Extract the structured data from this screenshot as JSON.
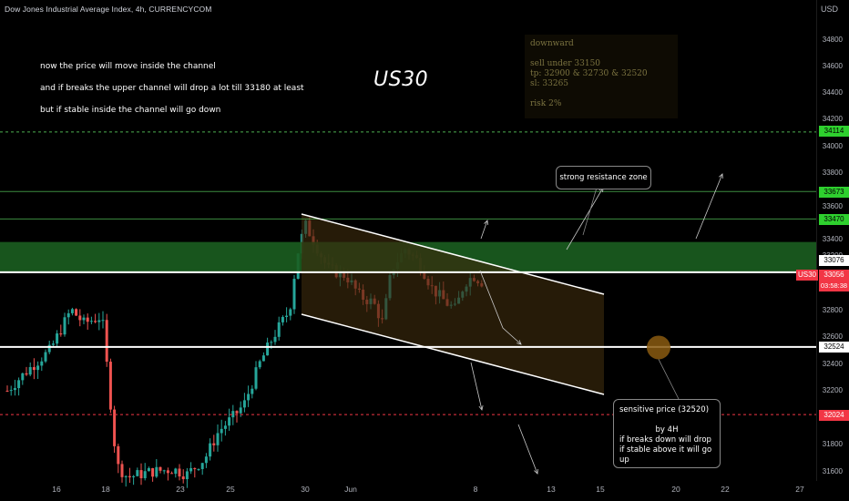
{
  "header": {
    "title": "Dow Jones Industrial Average Index, 4h, CURRENCYCOM",
    "currency": "USD"
  },
  "notes": [
    "now the price will move inside the channel",
    "and if breaks the upper channel will drop a lot till 33180 at least",
    "but if stable inside the channel will go down"
  ],
  "big_label": "US30",
  "plan": {
    "lines": [
      "downward",
      "",
      "sell under 33150",
      "tp: 32900 & 32730 & 32520",
      "sl: 33265",
      "",
      "risk 2%"
    ]
  },
  "callouts": {
    "resistance": "strong resistance zone",
    "sensitive": {
      "lines": [
        "sensitive price (32520)",
        "",
        "by 4H",
        "if breaks down will drop",
        "if stable above it will go up"
      ]
    }
  },
  "price_axis": {
    "labels": [
      "34800",
      "34600",
      "34400",
      "34200",
      "34000",
      "33800",
      "33600",
      "33400",
      "33200",
      "32800",
      "32600",
      "32400",
      "32200",
      "31800",
      "31600"
    ]
  },
  "price_tags": {
    "level_34114": "34114",
    "level_33673": "33673",
    "level_33470": "33470",
    "level_33076": "33076",
    "symbol": "US30",
    "current": "33056",
    "countdown": "03:58:38",
    "level_32524": "32524",
    "level_32024": "32024"
  },
  "date_axis": {
    "labels": [
      "16",
      "18",
      "23",
      "25",
      "30",
      "Jun",
      "8",
      "13",
      "15",
      "20",
      "22",
      "27"
    ]
  },
  "colors": {
    "up": "#26a69a",
    "down": "#ef5350",
    "resistance_zone": "#1b5e20",
    "green_line": "#4caf50",
    "red_dashed": "#f23645",
    "channel_fill": "#3a2a0d",
    "sensitive_marker": "#8a5a10",
    "tag_green": "#2ed02e",
    "tag_red": "#f23645"
  },
  "chart_data": {
    "type": "candlestick",
    "symbol": "US30",
    "timeframe": "4h",
    "ylim": [
      31550,
      34950
    ],
    "levels": [
      {
        "price": 34114,
        "style": "dashed",
        "color": "green"
      },
      {
        "price": 33673,
        "style": "solid",
        "color": "green"
      },
      {
        "price": 33470,
        "style": "solid",
        "color": "green"
      },
      {
        "price": 33076,
        "style": "solid",
        "color": "white"
      },
      {
        "price": 32524,
        "style": "solid",
        "color": "white"
      },
      {
        "price": 32024,
        "style": "dashed",
        "color": "red"
      }
    ],
    "resistance_zone": [
      33076,
      33300
    ],
    "channel": {
      "upper_start": 33470,
      "upper_end": 32900,
      "lower_start": 32800,
      "lower_end": 32170
    },
    "sensitive_price": 32520,
    "current_price": 33056
  }
}
